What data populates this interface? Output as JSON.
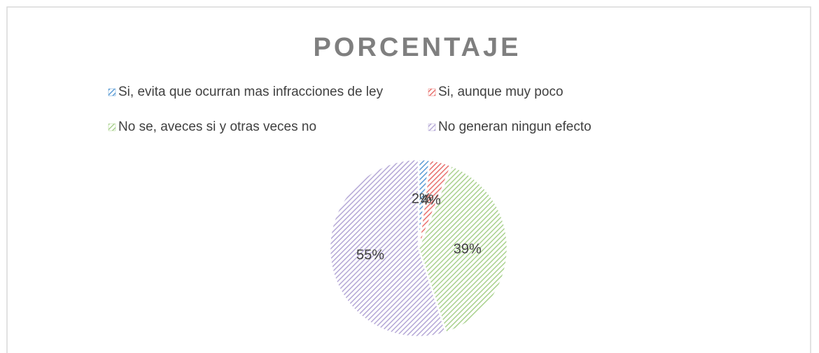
{
  "chart_data": {
    "type": "pie",
    "title": "PORCENTAJE",
    "categories": [
      "Si, evita que ocurran mas infracciones de ley",
      "Si, aunque muy poco",
      "No se, aveces si y otras veces no",
      "No generan ningun efecto"
    ],
    "values": [
      2,
      4,
      39,
      55
    ],
    "value_labels": [
      "2%",
      "4%",
      "39%",
      "55%"
    ],
    "colors": [
      "#5b9bd5",
      "#e8706d",
      "#a9d18e",
      "#b4a7d6"
    ],
    "legend": "top"
  }
}
